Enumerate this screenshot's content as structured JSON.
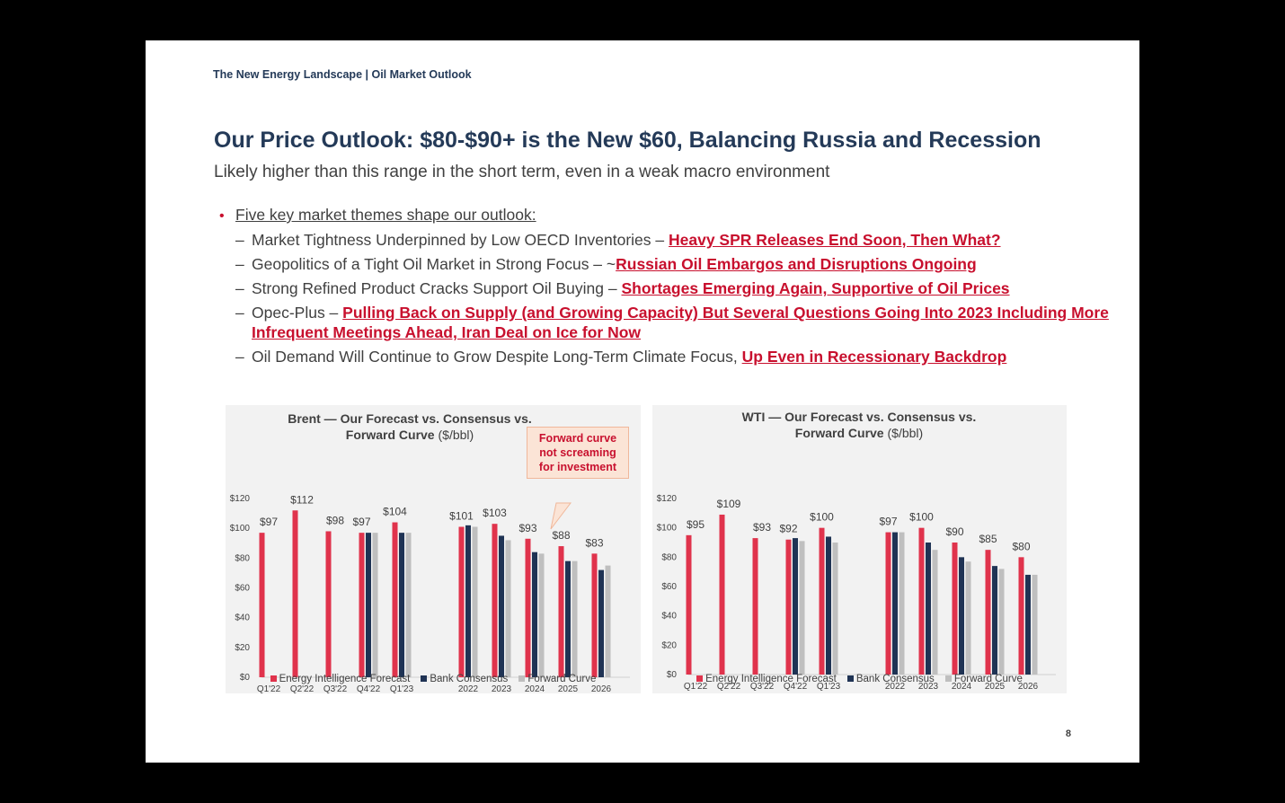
{
  "header": {
    "breadcrumb": "The New Energy Landscape | Oil Market Outlook",
    "title": "Our Price Outlook: $80-$90+ is the New $60, Balancing Russia and Recession",
    "subtitle": "Likely higher than this range in the short term, even in a weak macro environment"
  },
  "bullets": {
    "main": "Five key market themes shape our outlook:",
    "items": [
      {
        "text": "Market Tightness Underpinned by Low OECD Inventories – ",
        "link": "Heavy SPR Releases End Soon, Then What?"
      },
      {
        "text": "Geopolitics of a Tight Oil Market in Strong Focus – ~",
        "link": "Russian Oil Embargos and Disruptions Ongoing"
      },
      {
        "text": "Strong Refined Product Cracks Support Oil Buying – ",
        "link": "Shortages Emerging Again, Supportive of Oil Prices"
      },
      {
        "text": "Opec-Plus – ",
        "link": "Pulling Back on Supply (and Growing Capacity) But Several Questions Going Into 2023 Including More Infrequent Meetings Ahead, Iran Deal on Ice for Now"
      },
      {
        "text": "Oil Demand Will Continue to Grow Despite Long-Term Climate Focus, ",
        "link": "Up Even in Recessionary Backdrop"
      }
    ]
  },
  "colors": {
    "forecast": "#e0334c",
    "bank": "#1f3354",
    "forward": "#bfbfbf",
    "accent": "#c8102e"
  },
  "legend": {
    "forecast": "Energy Intelligence Forecast",
    "bank": "Bank Consensus",
    "forward": "Forward Curve"
  },
  "callout": {
    "line1": "Forward curve",
    "line2": "not screaming",
    "line3": "for investment"
  },
  "page_number": "8",
  "chart_data": [
    {
      "type": "bar",
      "title_line1": "Brent — Our Forecast vs. Consensus vs.",
      "title_line2": "Forward Curve",
      "title_unit": "($/bbl)",
      "ylim": [
        0,
        120
      ],
      "yticks": [
        "$0",
        "$20",
        "$40",
        "$60",
        "$80",
        "$100",
        "$120"
      ],
      "categories": [
        "Q1'22",
        "Q2'22",
        "Q3'22",
        "Q4'22",
        "Q1'23",
        "2022",
        "2023",
        "2024",
        "2025",
        "2026"
      ],
      "series": [
        {
          "name": "Energy Intelligence Forecast",
          "values": [
            97,
            112,
            98,
            97,
            104,
            101,
            103,
            93,
            88,
            83
          ]
        },
        {
          "name": "Bank Consensus",
          "values": [
            null,
            null,
            null,
            97,
            97,
            102,
            95,
            84,
            78,
            72
          ]
        },
        {
          "name": "Forward Curve",
          "values": [
            null,
            null,
            null,
            97,
            97,
            101,
            92,
            83,
            78,
            75
          ]
        }
      ],
      "data_labels": [
        "$97",
        "$112",
        "$98",
        "$97",
        "$104",
        "$101",
        "$103",
        "$93",
        "$88",
        "$83"
      ]
    },
    {
      "type": "bar",
      "title_line1": "WTI — Our Forecast vs. Consensus vs.",
      "title_line2": "Forward Curve",
      "title_unit": "($/bbl)",
      "ylim": [
        0,
        120
      ],
      "yticks": [
        "$0",
        "$20",
        "$40",
        "$60",
        "$80",
        "$100",
        "$120"
      ],
      "categories": [
        "Q1'22",
        "Q2'22",
        "Q3'22",
        "Q4'22",
        "Q1'23",
        "2022",
        "2023",
        "2024",
        "2025",
        "2026"
      ],
      "series": [
        {
          "name": "Energy Intelligence Forecast",
          "values": [
            95,
            109,
            93,
            92,
            100,
            97,
            100,
            90,
            85,
            80
          ]
        },
        {
          "name": "Bank Consensus",
          "values": [
            null,
            null,
            null,
            93,
            94,
            97,
            90,
            80,
            74,
            68
          ]
        },
        {
          "name": "Forward Curve",
          "values": [
            null,
            null,
            null,
            91,
            90,
            97,
            85,
            77,
            72,
            68
          ]
        }
      ],
      "data_labels": [
        "$95",
        "$109",
        "$93",
        "$92",
        "$100",
        "$97",
        "$100",
        "$90",
        "$85",
        "$80"
      ]
    }
  ]
}
